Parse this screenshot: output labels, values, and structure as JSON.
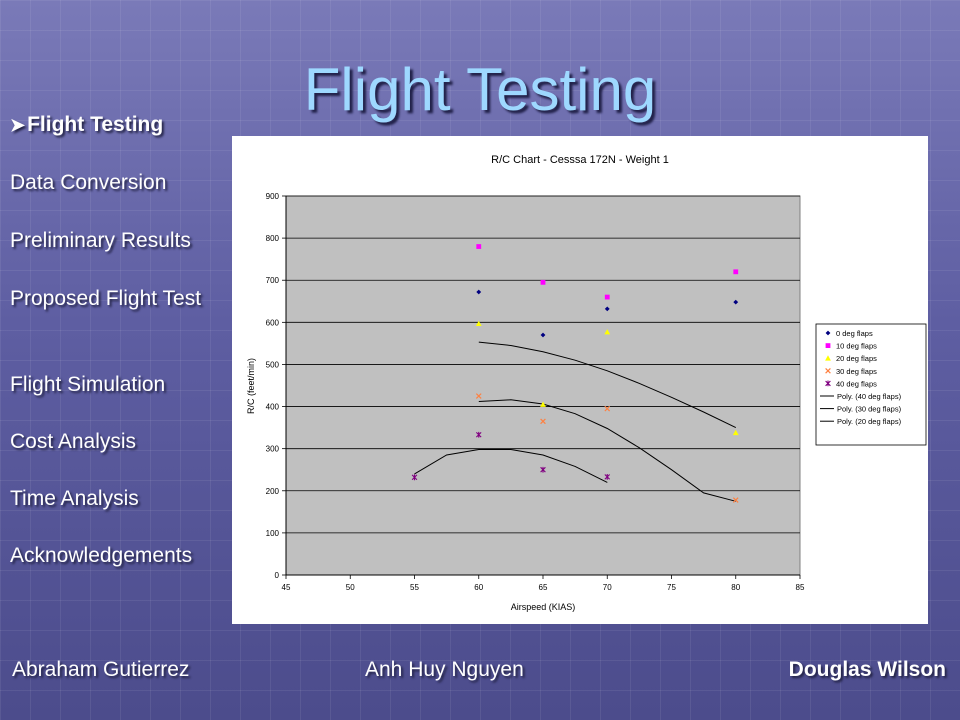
{
  "slide": {
    "title": "Flight Testing"
  },
  "nav": {
    "items": [
      {
        "label": "Flight Testing",
        "active": true
      },
      {
        "label": "Data Conversion"
      },
      {
        "label": "Preliminary Results"
      },
      {
        "label": "Proposed Flight Test"
      },
      {
        "label": "Flight Simulation"
      },
      {
        "label": "Cost Analysis"
      },
      {
        "label": "Time Analysis"
      },
      {
        "label": "Acknowledgements"
      }
    ]
  },
  "footer": {
    "authors": [
      "Abraham Gutierrez",
      "Anh Huy Nguyen",
      "Douglas Wilson"
    ]
  },
  "chart_data": {
    "type": "scatter",
    "title": "R/C Chart - Cesssa 172N - Weight 1",
    "xlabel": "Airspeed (KIAS)",
    "ylabel": "R/C (feet/min)",
    "xlim": [
      45,
      85
    ],
    "ylim": [
      0,
      900
    ],
    "xticks": [
      45,
      50,
      55,
      60,
      65,
      70,
      75,
      80,
      85
    ],
    "yticks": [
      0,
      100,
      200,
      300,
      400,
      500,
      600,
      700,
      800,
      900
    ],
    "grid": "horizontal",
    "legend_position": "right",
    "series": [
      {
        "name": "0 deg flaps",
        "marker": "diamond",
        "color": "#000080",
        "x": [
          60,
          65,
          70,
          80
        ],
        "y": [
          672,
          570,
          632,
          648
        ]
      },
      {
        "name": "10 deg flaps",
        "marker": "square",
        "color": "#ff00ff",
        "x": [
          60,
          65,
          70,
          80
        ],
        "y": [
          780,
          695,
          660,
          720
        ]
      },
      {
        "name": "20 deg flaps",
        "marker": "triangle",
        "color": "#ffff00",
        "x": [
          60,
          65,
          70,
          80
        ],
        "y": [
          597,
          405,
          577,
          338
        ]
      },
      {
        "name": "30 deg flaps",
        "marker": "x",
        "color": "#ff8040",
        "x": [
          60,
          65,
          70,
          80
        ],
        "y": [
          425,
          365,
          395,
          178
        ]
      },
      {
        "name": "40 deg flaps",
        "marker": "star",
        "color": "#800080",
        "x": [
          55,
          60,
          65,
          70
        ],
        "y": [
          232,
          333,
          250,
          233
        ]
      }
    ],
    "trendlines": [
      {
        "name": "Poly. (40 deg flaps)",
        "color": "#000000",
        "x": [
          55,
          57.5,
          60,
          62.5,
          65,
          67.5,
          70
        ],
        "y": [
          240,
          285,
          298,
          298,
          285,
          258,
          220
        ]
      },
      {
        "name": "Poly. (30 deg flaps)",
        "color": "#000000",
        "x": [
          60,
          62.5,
          65,
          67.5,
          70,
          72.5,
          75,
          77.5,
          80
        ],
        "y": [
          412,
          416,
          406,
          383,
          348,
          302,
          250,
          195,
          175
        ]
      },
      {
        "name": "Poly. (20 deg flaps)",
        "color": "#000000",
        "x": [
          60,
          62.5,
          65,
          67.5,
          70,
          72.5,
          75,
          77.5,
          80
        ],
        "y": [
          553,
          545,
          530,
          510,
          485,
          455,
          422,
          387,
          350
        ]
      }
    ]
  }
}
